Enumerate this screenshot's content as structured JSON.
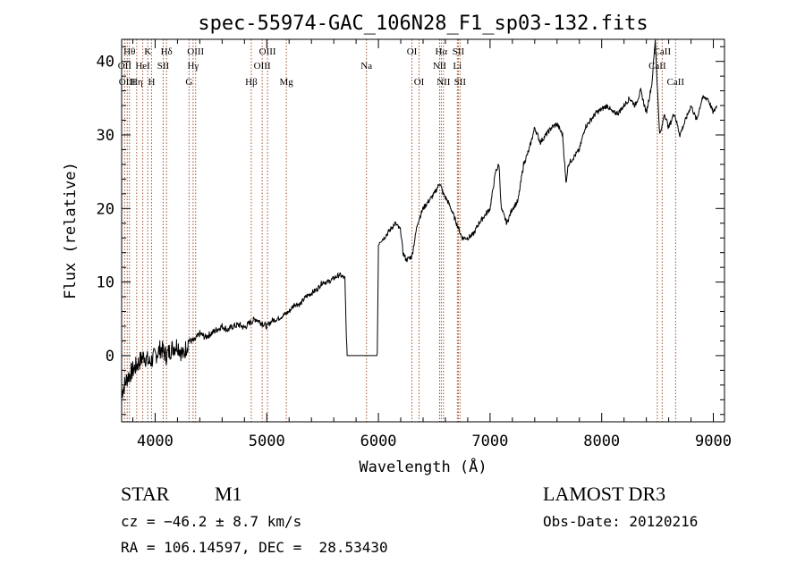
{
  "chart_data": {
    "type": "line",
    "title": "spec-55974-GAC_106N28_F1_sp03-132.fits",
    "xlabel": "Wavelength (Å)",
    "ylabel": "Flux (relative)",
    "xlim": [
      3700,
      9100
    ],
    "ylim": [
      -9,
      43
    ],
    "x_ticks": [
      4000,
      5000,
      6000,
      7000,
      8000,
      9000
    ],
    "x_tick_labels": [
      "4000",
      "5000",
      "6000",
      "7000",
      "8000",
      "9000"
    ],
    "y_ticks": [
      0,
      10,
      20,
      30,
      40
    ],
    "y_tick_labels": [
      "0",
      "10",
      "20",
      "30",
      "40"
    ],
    "series": [
      {
        "name": "spectrum",
        "x": [
          3700,
          3750,
          3800,
          3850,
          3900,
          3950,
          4000,
          4050,
          4100,
          4150,
          4200,
          4250,
          4300,
          4350,
          4400,
          4450,
          4500,
          4550,
          4600,
          4650,
          4700,
          4750,
          4800,
          4850,
          4900,
          4950,
          5000,
          5050,
          5100,
          5150,
          5200,
          5250,
          5300,
          5350,
          5400,
          5450,
          5500,
          5550,
          5600,
          5650,
          5700,
          5710,
          5720,
          5990,
          6000,
          6010,
          6050,
          6100,
          6150,
          6200,
          6220,
          6250,
          6300,
          6350,
          6400,
          6450,
          6500,
          6550,
          6580,
          6620,
          6650,
          6700,
          6750,
          6800,
          6850,
          6900,
          6950,
          7000,
          7050,
          7080,
          7100,
          7150,
          7200,
          7250,
          7300,
          7350,
          7400,
          7450,
          7500,
          7550,
          7600,
          7650,
          7680,
          7700,
          7750,
          7800,
          7850,
          7900,
          7950,
          8000,
          8050,
          8100,
          8150,
          8200,
          8250,
          8300,
          8350,
          8400,
          8450,
          8480,
          8500,
          8520,
          8540,
          8560,
          8600,
          8650,
          8700,
          8750,
          8800,
          8850,
          8900,
          8950,
          9000,
          9030
        ],
        "values": [
          -5,
          -3,
          -2,
          -1,
          0,
          -1,
          0,
          1,
          0,
          1,
          1.5,
          0,
          2,
          2,
          3,
          2.5,
          3,
          3.5,
          4,
          3.5,
          4,
          4.2,
          3.8,
          4.5,
          5,
          4.5,
          4,
          4.8,
          5,
          5.5,
          6,
          7,
          7,
          8,
          8.5,
          9,
          10,
          10,
          10.5,
          11,
          10.5,
          4,
          0,
          0,
          15,
          15.5,
          16,
          17,
          18,
          17,
          14,
          13,
          13.5,
          18,
          20,
          21,
          22,
          23.5,
          22,
          21,
          20,
          18,
          16,
          16,
          16.5,
          18,
          19,
          20,
          25,
          26,
          20,
          18,
          20,
          21,
          26,
          28,
          31,
          29,
          30,
          31,
          31.5,
          30,
          23.5,
          26,
          27,
          28,
          31,
          32,
          33,
          33.5,
          34,
          33,
          33,
          34,
          35,
          34,
          36,
          33,
          37,
          43,
          36,
          30,
          31,
          33,
          31,
          33,
          30,
          32,
          34,
          32,
          35,
          35,
          33,
          34
        ]
      }
    ],
    "line_markers": [
      {
        "wave": 3727,
        "label": "OII",
        "row": 2
      },
      {
        "wave": 3750,
        "label": "OIII",
        "row": 3
      },
      {
        "wave": 3770,
        "label": "Hθ",
        "row": 1
      },
      {
        "wave": 3835,
        "label": "Hη",
        "row": 3
      },
      {
        "wave": 3889,
        "label": "HeI",
        "row": 2
      },
      {
        "wave": 3934,
        "label": "K",
        "row": 1
      },
      {
        "wave": 3968,
        "label": "H",
        "row": 3
      },
      {
        "wave": 4072,
        "label": "SII",
        "row": 2
      },
      {
        "wave": 4102,
        "label": "Hδ",
        "row": 1
      },
      {
        "wave": 4304,
        "label": "G",
        "row": 3
      },
      {
        "wave": 4340,
        "label": "Hγ",
        "row": 2
      },
      {
        "wave": 4363,
        "label": "OIII",
        "row": 1
      },
      {
        "wave": 4861,
        "label": "Hβ",
        "row": 3
      },
      {
        "wave": 4959,
        "label": "OIII",
        "row": 2
      },
      {
        "wave": 5007,
        "label": "OIII",
        "row": 1
      },
      {
        "wave": 5175,
        "label": "Mg",
        "row": 3
      },
      {
        "wave": 5893,
        "label": "Na",
        "row": 2
      },
      {
        "wave": 6300,
        "label": "OI",
        "row": 1
      },
      {
        "wave": 6364,
        "label": "OI",
        "row": 3
      },
      {
        "wave": 6548,
        "label": "NII",
        "row": 2
      },
      {
        "wave": 6563,
        "label": "Hα",
        "row": 1
      },
      {
        "wave": 6583,
        "label": "NII",
        "row": 3
      },
      {
        "wave": 6707,
        "label": "Li",
        "row": 2
      },
      {
        "wave": 6716,
        "label": "SII",
        "row": 1
      },
      {
        "wave": 6731,
        "label": "SII",
        "row": 3
      },
      {
        "wave": 8498,
        "label": "CaII",
        "row": 2
      },
      {
        "wave": 8542,
        "label": "CaII",
        "row": 1
      },
      {
        "wave": 8662,
        "label": "CaII",
        "row": 3
      }
    ]
  },
  "info": {
    "class": "STAR",
    "subclass": "M1",
    "survey": "LAMOST DR3",
    "cz": "cz = −46.2 ± 8.7 km/s",
    "obs_date": "Obs-Date: 20120216",
    "radec": "RA = 106.14597, DEC =  28.53430"
  },
  "colors": {
    "axis": "#000000",
    "spectrum": "#000000",
    "marker": "#a0522d"
  }
}
